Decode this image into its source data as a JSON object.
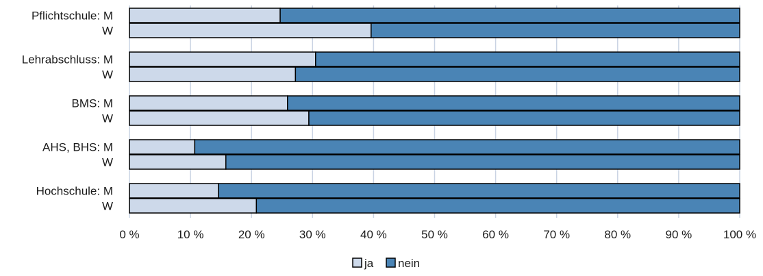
{
  "chart_data": {
    "type": "bar",
    "orientation": "horizontal",
    "stacked": true,
    "percent": true,
    "categories": [
      "Pflichtschule: M",
      "W",
      "Lehrabschluss: M",
      "W",
      "BMS: M",
      "W",
      "AHS, BHS: M",
      "W",
      "Hochschule: M",
      "W"
    ],
    "series": [
      {
        "name": "ja",
        "color": "#cdd9ea",
        "values": [
          24.7,
          39.6,
          30.5,
          27.2,
          25.9,
          29.4,
          10.7,
          15.8,
          14.6,
          20.8
        ]
      },
      {
        "name": "nein",
        "color": "#4a84b5",
        "values": [
          75.3,
          60.4,
          69.5,
          72.8,
          74.1,
          70.6,
          89.3,
          84.2,
          85.4,
          79.2
        ]
      }
    ],
    "xlim": [
      0,
      100
    ],
    "xticks": [
      "0 %",
      "10 %",
      "20 %",
      "30 %",
      "40 %",
      "50 %",
      "60 %",
      "70 %",
      "80 %",
      "90 %",
      "100 %"
    ],
    "grid": "vertical",
    "legend_position": "bottom"
  }
}
